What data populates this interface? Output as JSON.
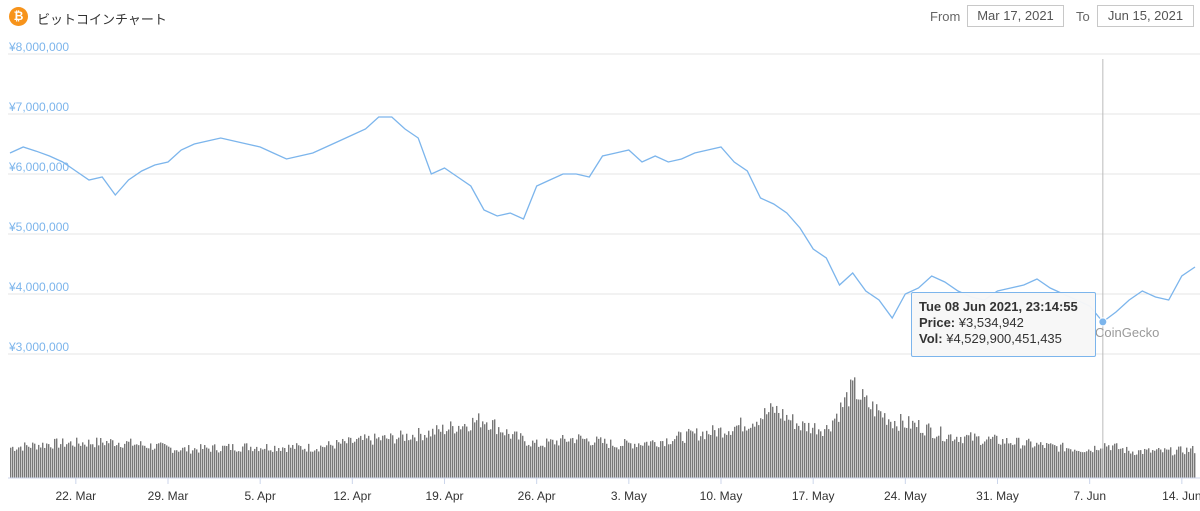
{
  "header": {
    "logo_glyph": "₿",
    "title": "ビットコインチャート",
    "from_label": "From",
    "from_value": "Mar 17, 2021",
    "to_label": "To",
    "to_value": "Jun 15, 2021"
  },
  "tooltip": {
    "date": "Tue 08 Jun 2021, 23:14:55",
    "price_label": "Price:",
    "price_value": "¥3,534,942",
    "vol_label": "Vol:",
    "vol_value": "¥4,529,900,451,435"
  },
  "watermark": "CoinGecko",
  "colors": {
    "line": "#7cb5ec",
    "volume": "#777777",
    "grid": "#e6e6e6",
    "axis_label": "#7cb5ec",
    "logo": "#f7931a"
  },
  "chart_data": {
    "type": "line",
    "x_range": [
      "2021-03-17",
      "2021-06-15"
    ],
    "y_ticks": [
      "¥3,000,000",
      "¥4,000,000",
      "¥5,000,000",
      "¥6,000,000",
      "¥7,000,000",
      "¥8,000,000"
    ],
    "ylim": [
      3000000,
      8000000
    ],
    "x_ticks": [
      "22. Mar",
      "29. Mar",
      "5. Apr",
      "12. Apr",
      "19. Apr",
      "26. Apr",
      "3. May",
      "10. May",
      "17. May",
      "24. May",
      "31. May",
      "7. Jun",
      "14. Jun"
    ],
    "x_tick_dates": [
      "2021-03-22",
      "2021-03-29",
      "2021-04-05",
      "2021-04-12",
      "2021-04-19",
      "2021-04-26",
      "2021-05-03",
      "2021-05-10",
      "2021-05-17",
      "2021-05-24",
      "2021-05-31",
      "2021-06-07",
      "2021-06-14"
    ],
    "series": [
      {
        "x": [
          "2021-03-17",
          "2021-03-18",
          "2021-03-19",
          "2021-03-20",
          "2021-03-21",
          "2021-03-22",
          "2021-03-23",
          "2021-03-24",
          "2021-03-25",
          "2021-03-26",
          "2021-03-27",
          "2021-03-28",
          "2021-03-29",
          "2021-03-30",
          "2021-03-31",
          "2021-04-01",
          "2021-04-02",
          "2021-04-03",
          "2021-04-04",
          "2021-04-05",
          "2021-04-06",
          "2021-04-07",
          "2021-04-08",
          "2021-04-09",
          "2021-04-10",
          "2021-04-11",
          "2021-04-12",
          "2021-04-13",
          "2021-04-14",
          "2021-04-15",
          "2021-04-16",
          "2021-04-17",
          "2021-04-18",
          "2021-04-19",
          "2021-04-20",
          "2021-04-21",
          "2021-04-22",
          "2021-04-23",
          "2021-04-24",
          "2021-04-25",
          "2021-04-26",
          "2021-04-27",
          "2021-04-28",
          "2021-04-29",
          "2021-04-30",
          "2021-05-01",
          "2021-05-02",
          "2021-05-03",
          "2021-05-04",
          "2021-05-05",
          "2021-05-06",
          "2021-05-07",
          "2021-05-08",
          "2021-05-09",
          "2021-05-10",
          "2021-05-11",
          "2021-05-12",
          "2021-05-13",
          "2021-05-14",
          "2021-05-15",
          "2021-05-16",
          "2021-05-17",
          "2021-05-18",
          "2021-05-19",
          "2021-05-20",
          "2021-05-21",
          "2021-05-22",
          "2021-05-23",
          "2021-05-24",
          "2021-05-25",
          "2021-05-26",
          "2021-05-27",
          "2021-05-28",
          "2021-05-29",
          "2021-05-30",
          "2021-05-31",
          "2021-06-01",
          "2021-06-02",
          "2021-06-03",
          "2021-06-04",
          "2021-06-05",
          "2021-06-06",
          "2021-06-07",
          "2021-06-08",
          "2021-06-09",
          "2021-06-10",
          "2021-06-11",
          "2021-06-12",
          "2021-06-13",
          "2021-06-14",
          "2021-06-15"
        ],
        "y": [
          6350000,
          6450000,
          6380000,
          6300000,
          6200000,
          6050000,
          5900000,
          5950000,
          5650000,
          5900000,
          6050000,
          6150000,
          6200000,
          6400000,
          6500000,
          6550000,
          6600000,
          6550000,
          6500000,
          6450000,
          6350000,
          6250000,
          6300000,
          6350000,
          6450000,
          6550000,
          6650000,
          6750000,
          6950000,
          6950000,
          6750000,
          6600000,
          6000000,
          6100000,
          5950000,
          5800000,
          5400000,
          5300000,
          5350000,
          5250000,
          5800000,
          5900000,
          6000000,
          6000000,
          5950000,
          6300000,
          6350000,
          6400000,
          6200000,
          6300000,
          6200000,
          6250000,
          6350000,
          6400000,
          6450000,
          6200000,
          6050000,
          5600000,
          5500000,
          5350000,
          5100000,
          4750000,
          4600000,
          4150000,
          4350000,
          4050000,
          3900000,
          3600000,
          4000000,
          4100000,
          4300000,
          4200000,
          4050000,
          3950000,
          3900000,
          4050000,
          4100000,
          4150000,
          4250000,
          4100000,
          4000000,
          3900000,
          3800000,
          3534942,
          3700000,
          3900000,
          4050000,
          3950000,
          3900000,
          4300000,
          4450000
        ]
      }
    ],
    "volume": {
      "x": [
        "2021-03-17",
        "2021-03-20",
        "2021-03-25",
        "2021-03-30",
        "2021-04-04",
        "2021-04-09",
        "2021-04-13",
        "2021-04-15",
        "2021-04-18",
        "2021-04-20",
        "2021-04-22",
        "2021-04-24",
        "2021-04-26",
        "2021-04-29",
        "2021-05-02",
        "2021-05-05",
        "2021-05-08",
        "2021-05-10",
        "2021-05-12",
        "2021-05-14",
        "2021-05-16",
        "2021-05-18",
        "2021-05-19",
        "2021-05-20",
        "2021-05-21",
        "2021-05-23",
        "2021-05-25",
        "2021-05-27",
        "2021-05-29",
        "2021-06-01",
        "2021-06-04",
        "2021-06-07",
        "2021-06-08",
        "2021-06-10",
        "2021-06-13",
        "2021-06-15"
      ],
      "values": [
        0.32,
        0.36,
        0.38,
        0.3,
        0.33,
        0.32,
        0.4,
        0.42,
        0.48,
        0.55,
        0.62,
        0.45,
        0.35,
        0.42,
        0.35,
        0.38,
        0.46,
        0.5,
        0.58,
        0.72,
        0.55,
        0.52,
        0.72,
        0.95,
        0.78,
        0.6,
        0.55,
        0.45,
        0.42,
        0.38,
        0.33,
        0.3,
        0.36,
        0.28,
        0.28,
        0.3
      ]
    }
  }
}
